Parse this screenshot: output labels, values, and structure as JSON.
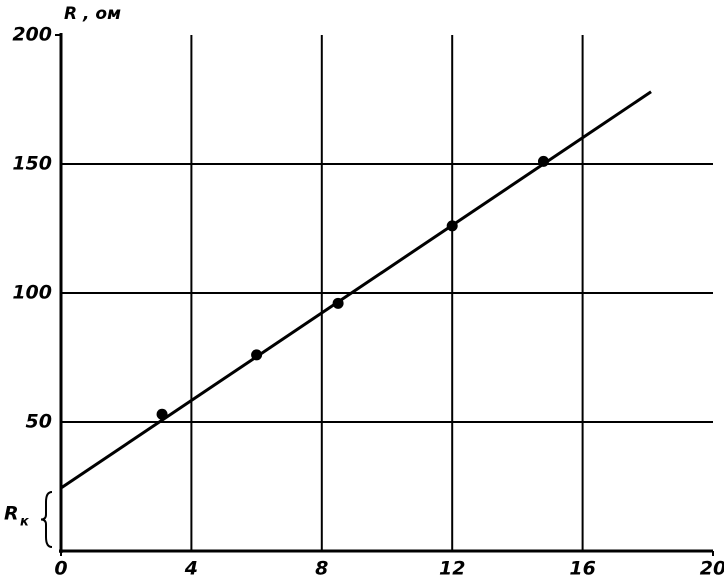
{
  "chart_data": {
    "type": "line",
    "y_label": "R , ом",
    "rk_label": "R",
    "rk_subscript": "к",
    "xlim": [
      0,
      20
    ],
    "xticks": [
      0,
      4,
      8,
      12,
      16,
      20
    ],
    "ylim": [
      0,
      200
    ],
    "yticks": [
      50,
      100,
      150,
      200
    ],
    "grid": true,
    "color": "#000000",
    "line": {
      "x": [
        0,
        18.1
      ],
      "values": [
        24.4,
        178
      ]
    },
    "points": {
      "x": [
        3.1,
        6,
        8.5,
        12,
        14.8
      ],
      "values": [
        53,
        76,
        96,
        126,
        151
      ]
    }
  }
}
